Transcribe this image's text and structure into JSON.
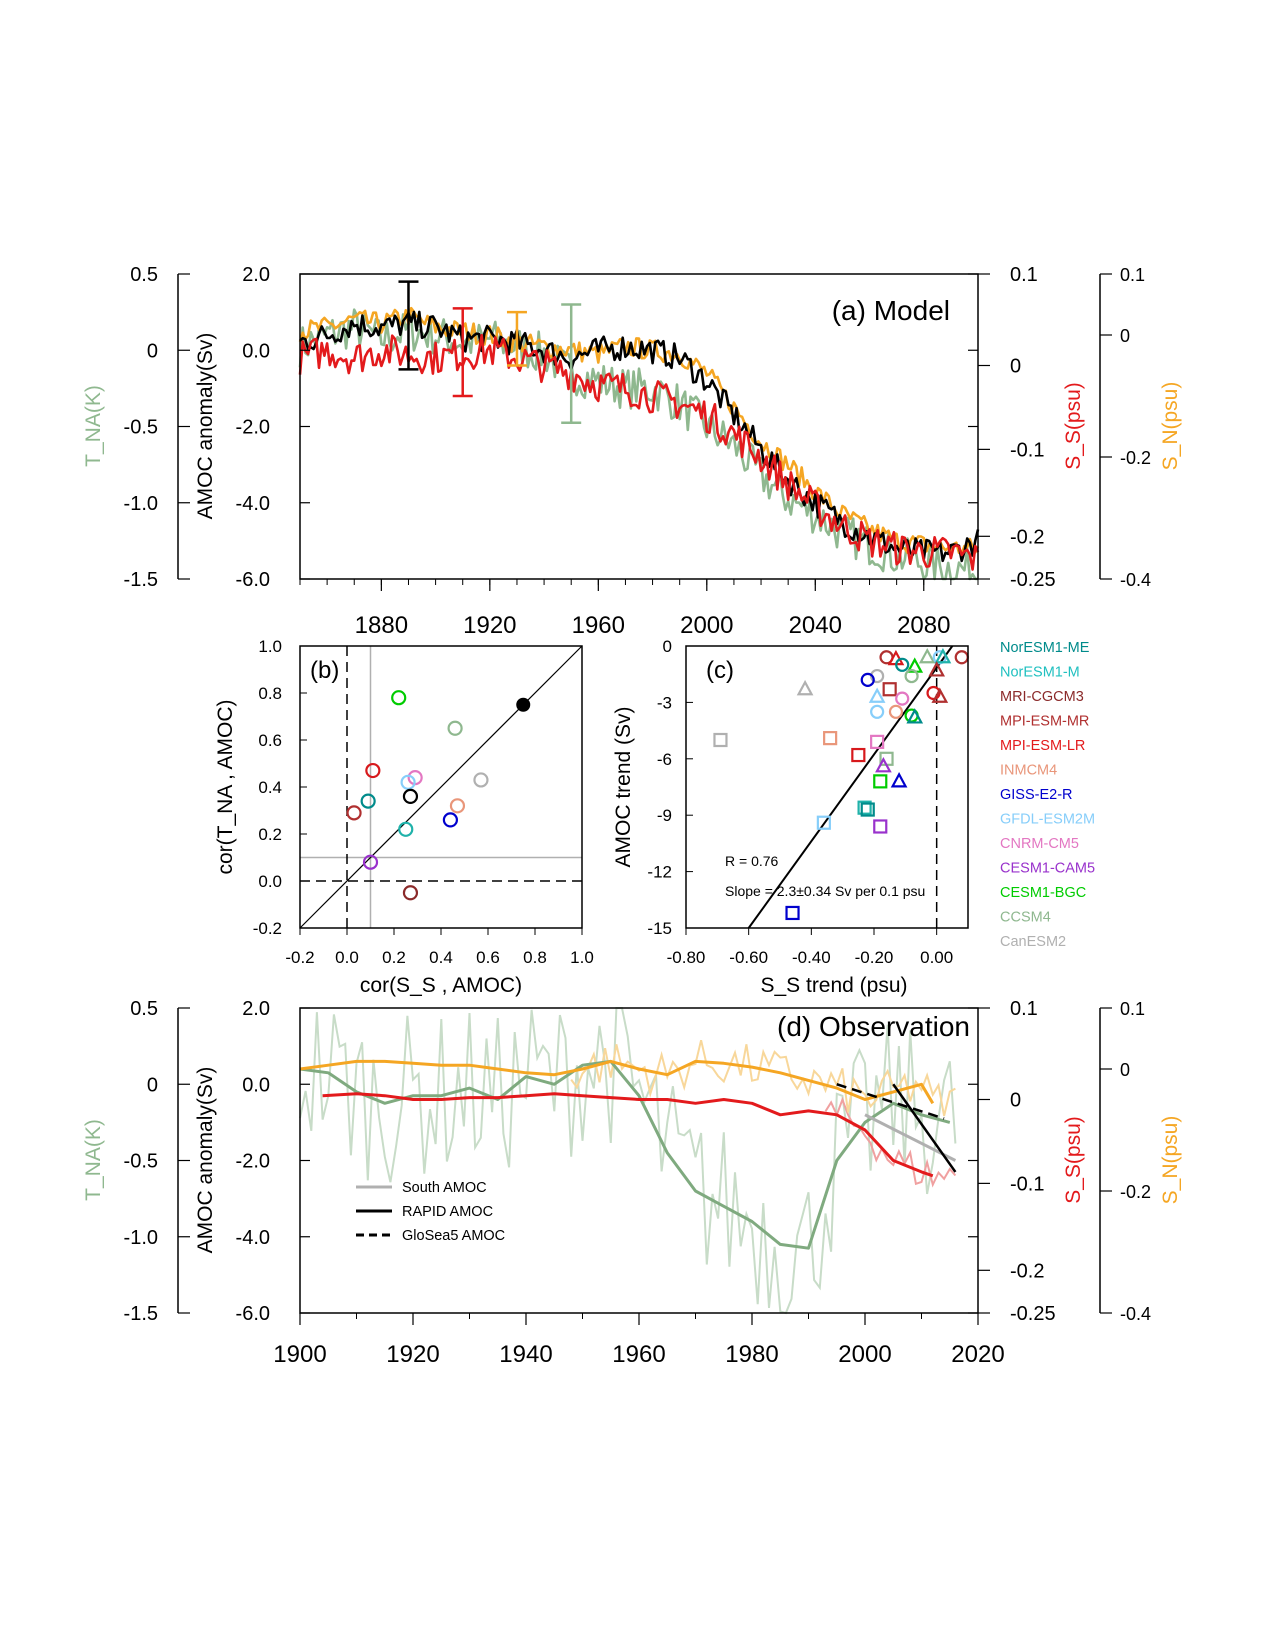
{
  "colors": {
    "black": "#000000",
    "red": "#e31a1c",
    "green": "#8fb88f",
    "orange": "#f5a623",
    "gray": "#b0b0b0"
  },
  "chart_data": [
    {
      "id": "a",
      "type": "line",
      "panel_label": "(a)  Model",
      "ylabel_left": "AMOC anomaly(Sv)",
      "ylabel_far_left": "T_NA(K)",
      "ylabel_right": "S_S(psu)",
      "ylabel_far_right": "S_N(psu)",
      "xlim": [
        1850,
        2100
      ],
      "xticks": [
        "1880",
        "1920",
        "1960",
        "2000",
        "2040",
        "2080"
      ],
      "ylim": [
        -6.0,
        2.0
      ],
      "yticks_left": [
        "2.0",
        "0.0",
        "-2.0",
        "-4.0",
        "-6.0"
      ],
      "yticks_far_left": [
        "0.5",
        "0",
        "-0.5",
        "-1.0",
        "-1.5"
      ],
      "yticks_right": [
        "0.1",
        "0",
        "-0.1",
        "-0.2",
        "-0.25"
      ],
      "yticks_far_right": [
        "0.1",
        "0",
        "-0.2",
        "-0.4"
      ],
      "series": [
        {
          "role": "AMOC",
          "color": "#000000",
          "x": [
            1850,
            1860,
            1870,
            1880,
            1890,
            1900,
            1910,
            1920,
            1930,
            1940,
            1950,
            1960,
            1970,
            1980,
            1990,
            2000,
            2010,
            2020,
            2030,
            2040,
            2050,
            2060,
            2070,
            2080,
            2090,
            2100
          ],
          "values": [
            0.2,
            0.4,
            0.7,
            0.6,
            0.7,
            0.6,
            0.3,
            0.3,
            0.2,
            0.0,
            -0.2,
            0.0,
            0.1,
            0.0,
            -0.2,
            -0.8,
            -1.7,
            -2.6,
            -3.4,
            -4.0,
            -4.5,
            -4.9,
            -5.2,
            -5.3,
            -5.3,
            -5.0
          ]
        },
        {
          "role": "S_S",
          "color": "#e31a1c",
          "x": [
            1850,
            1860,
            1870,
            1880,
            1890,
            1900,
            1910,
            1920,
            1930,
            1940,
            1950,
            1960,
            1970,
            1980,
            1990,
            2000,
            2010,
            2020,
            2030,
            2040,
            2050,
            2060,
            2070,
            2080,
            2090,
            2100
          ],
          "values": [
            -0.2,
            0.0,
            -0.2,
            0.0,
            -0.1,
            -0.2,
            -0.1,
            0.0,
            -0.2,
            -0.4,
            -0.6,
            -0.9,
            -1.0,
            -1.2,
            -1.4,
            -1.7,
            -2.2,
            -2.8,
            -3.5,
            -4.1,
            -4.6,
            -5.0,
            -5.2,
            -5.3,
            -5.3,
            -5.5
          ]
        },
        {
          "role": "T_NA",
          "color": "#8fb88f",
          "x": [
            1850,
            1860,
            1870,
            1880,
            1890,
            1900,
            1910,
            1920,
            1930,
            1940,
            1950,
            1960,
            1970,
            1980,
            1990,
            2000,
            2010,
            2020,
            2030,
            2040,
            2050,
            2060,
            2070,
            2080,
            2090,
            2100
          ],
          "values": [
            0.1,
            0.4,
            0.6,
            0.3,
            0.5,
            0.4,
            0.2,
            0.3,
            0.1,
            -0.1,
            -0.6,
            -0.8,
            -1.0,
            -1.0,
            -1.4,
            -2.0,
            -2.5,
            -3.3,
            -3.9,
            -4.3,
            -4.8,
            -5.1,
            -5.4,
            -5.6,
            -5.7,
            -5.8
          ]
        },
        {
          "role": "S_N",
          "color": "#f5a623",
          "x": [
            1850,
            1860,
            1870,
            1880,
            1890,
            1900,
            1910,
            1920,
            1930,
            1940,
            1950,
            1960,
            1970,
            1980,
            1990,
            2000,
            2010,
            2020,
            2030,
            2040,
            2050,
            2060,
            2070,
            2080,
            2090,
            2100
          ],
          "values": [
            0.5,
            0.6,
            0.8,
            0.7,
            0.9,
            0.6,
            0.5,
            0.4,
            0.2,
            0.1,
            0.0,
            -0.1,
            0.1,
            0.0,
            -0.1,
            -0.6,
            -1.5,
            -2.4,
            -3.0,
            -3.7,
            -4.3,
            -4.7,
            -5.0,
            -5.1,
            -5.2,
            -5.2
          ]
        }
      ],
      "error_bars": [
        {
          "color": "#000000",
          "x": 1890,
          "low": -0.5,
          "high": 1.8
        },
        {
          "color": "#e31a1c",
          "x": 1910,
          "low": -1.2,
          "high": 1.1
        },
        {
          "color": "#f5a623",
          "x": 1930,
          "low": -0.4,
          "high": 1.0
        },
        {
          "color": "#8fb88f",
          "x": 1950,
          "low": -1.9,
          "high": 1.2
        }
      ]
    },
    {
      "id": "b",
      "type": "scatter",
      "panel_label": "(b)",
      "xlabel": "cor(S_S , AMOC)",
      "ylabel": "cor(T_NA , AMOC)",
      "xlim": [
        -0.2,
        1.0
      ],
      "ylim": [
        -0.2,
        1.0
      ],
      "xticks": [
        "-0.2",
        "0.0",
        "0.2",
        "0.4",
        "0.6",
        "0.8",
        "1.0"
      ],
      "yticks": [
        "1.0",
        "0.8",
        "0.6",
        "0.4",
        "0.2",
        "0.0",
        "-0.2"
      ],
      "points": [
        {
          "x": 0.22,
          "y": 0.78,
          "color": "#00cc00"
        },
        {
          "x": 0.46,
          "y": 0.65,
          "color": "#8fb88f"
        },
        {
          "x": 0.57,
          "y": 0.43,
          "color": "#b0b0b0"
        },
        {
          "x": 0.11,
          "y": 0.47,
          "color": "#d7191c"
        },
        {
          "x": 0.29,
          "y": 0.44,
          "color": "#e377c2"
        },
        {
          "x": 0.26,
          "y": 0.42,
          "color": "#87cefa"
        },
        {
          "x": 0.27,
          "y": 0.36,
          "color": "#000000"
        },
        {
          "x": 0.09,
          "y": 0.34,
          "color": "#008b8b"
        },
        {
          "x": 0.47,
          "y": 0.32,
          "color": "#e9967a"
        },
        {
          "x": 0.03,
          "y": 0.29,
          "color": "#b03030"
        },
        {
          "x": 0.44,
          "y": 0.26,
          "color": "#0000cd"
        },
        {
          "x": 0.25,
          "y": 0.22,
          "color": "#20b2aa"
        },
        {
          "x": 0.1,
          "y": 0.08,
          "color": "#9932cc"
        },
        {
          "x": 0.27,
          "y": -0.05,
          "color": "#8b2a2a"
        }
      ],
      "filled_point": {
        "x": 0.75,
        "y": 0.75,
        "color": "#000000"
      }
    },
    {
      "id": "c",
      "type": "scatter",
      "panel_label": "(c)",
      "xlabel": "S_S trend (psu)",
      "ylabel": "AMOC trend (Sv)",
      "xlim": [
        -0.8,
        0.1
      ],
      "ylim": [
        -15,
        0
      ],
      "xticks": [
        "-0.80",
        "-0.60",
        "-0.40",
        "-0.20",
        "0.00"
      ],
      "yticks": [
        "0",
        "-3",
        "-6",
        "-9",
        "-12",
        "-15"
      ],
      "annotation_r": "R = 0.76",
      "annotation_slope": "Slope = 2.3±0.34 Sv per 0.1 psu",
      "fit_line": {
        "x": [
          -0.6,
          0.05
        ],
        "y": [
          -15,
          0
        ]
      },
      "points": [
        {
          "x": -0.16,
          "y": -0.6,
          "m": "o",
          "c": "#b03030"
        },
        {
          "x": -0.13,
          "y": -0.7,
          "m": "^",
          "c": "#d7191c"
        },
        {
          "x": -0.11,
          "y": -1.0,
          "m": "o",
          "c": "#008b8b"
        },
        {
          "x": -0.03,
          "y": -0.6,
          "m": "^",
          "c": "#8fb88f"
        },
        {
          "x": 0.01,
          "y": -0.6,
          "m": "o",
          "c": "#87cefa"
        },
        {
          "x": 0.02,
          "y": -0.6,
          "m": "^",
          "c": "#20b2aa"
        },
        {
          "x": 0.08,
          "y": -0.6,
          "m": "o",
          "c": "#b03030"
        },
        {
          "x": -0.07,
          "y": -1.1,
          "m": "^",
          "c": "#00cc00"
        },
        {
          "x": 0.0,
          "y": -1.3,
          "m": "^",
          "c": "#b03030"
        },
        {
          "x": -0.19,
          "y": -1.6,
          "m": "o",
          "c": "#b0b0b0"
        },
        {
          "x": -0.22,
          "y": -1.8,
          "m": "o",
          "c": "#0000cd"
        },
        {
          "x": -0.08,
          "y": -1.6,
          "m": "o",
          "c": "#8fb88f"
        },
        {
          "x": -0.42,
          "y": -2.3,
          "m": "^",
          "c": "#b0b0b0"
        },
        {
          "x": -0.15,
          "y": -2.3,
          "m": "s",
          "c": "#b03030"
        },
        {
          "x": -0.01,
          "y": -2.5,
          "m": "o",
          "c": "#d7191c"
        },
        {
          "x": 0.01,
          "y": -2.7,
          "m": "^",
          "c": "#b03030"
        },
        {
          "x": -0.19,
          "y": -2.7,
          "m": "^",
          "c": "#87cefa"
        },
        {
          "x": -0.11,
          "y": -2.8,
          "m": "o",
          "c": "#e377c2"
        },
        {
          "x": -0.19,
          "y": -3.5,
          "m": "o",
          "c": "#87cefa"
        },
        {
          "x": -0.13,
          "y": -3.5,
          "m": "o",
          "c": "#e9967a"
        },
        {
          "x": -0.08,
          "y": -3.7,
          "m": "o",
          "c": "#00cc00"
        },
        {
          "x": -0.07,
          "y": -3.8,
          "m": "^",
          "c": "#008b8b"
        },
        {
          "x": -0.69,
          "y": -5.0,
          "m": "s",
          "c": "#b0b0b0"
        },
        {
          "x": -0.34,
          "y": -4.9,
          "m": "s",
          "c": "#e9967a"
        },
        {
          "x": -0.19,
          "y": -5.1,
          "m": "s",
          "c": "#e377c2"
        },
        {
          "x": -0.25,
          "y": -5.8,
          "m": "s",
          "c": "#d7191c"
        },
        {
          "x": -0.16,
          "y": -6.0,
          "m": "s",
          "c": "#8fb88f"
        },
        {
          "x": -0.17,
          "y": -6.4,
          "m": "^",
          "c": "#9932cc"
        },
        {
          "x": -0.12,
          "y": -7.2,
          "m": "^",
          "c": "#0000cd"
        },
        {
          "x": -0.18,
          "y": -7.2,
          "m": "s",
          "c": "#00cc00"
        },
        {
          "x": -0.23,
          "y": -8.6,
          "m": "s",
          "c": "#20b2aa"
        },
        {
          "x": -0.22,
          "y": -8.7,
          "m": "s",
          "c": "#008b8b"
        },
        {
          "x": -0.36,
          "y": -9.4,
          "m": "s",
          "c": "#87cefa"
        },
        {
          "x": -0.18,
          "y": -9.6,
          "m": "s",
          "c": "#9932cc"
        },
        {
          "x": -0.46,
          "y": -14.2,
          "m": "s",
          "c": "#0000cd"
        }
      ]
    },
    {
      "id": "d",
      "type": "line",
      "panel_label": "(d)  Observation",
      "ylabel_left": "AMOC anomaly(Sv)",
      "ylabel_far_left": "T_NA(K)",
      "ylabel_right": "S_S(psu)",
      "ylabel_far_right": "S_N(psu)",
      "xlim": [
        1900,
        2020
      ],
      "xticks": [
        "1900",
        "1920",
        "1940",
        "1960",
        "1980",
        "2000",
        "2020"
      ],
      "ylim": [
        -6.0,
        2.0
      ],
      "yticks_left": [
        "2.0",
        "0.0",
        "-2.0",
        "-4.0",
        "-6.0"
      ],
      "yticks_far_left": [
        "0.5",
        "0",
        "-0.5",
        "-1.0",
        "-1.5"
      ],
      "yticks_right": [
        "0.1",
        "0",
        "-0.1",
        "-0.2",
        "-0.25"
      ],
      "yticks_far_right": [
        "0.1",
        "0",
        "-0.2",
        "-0.4"
      ],
      "legend": [
        "South AMOC",
        "RAPID AMOC",
        "GloSea5 AMOC"
      ],
      "series": [
        {
          "role": "S_N smooth",
          "color": "#f5a623",
          "x": [
            1900,
            1905,
            1910,
            1915,
            1920,
            1925,
            1930,
            1935,
            1940,
            1945,
            1950,
            1955,
            1960,
            1965,
            1970,
            1975,
            1980,
            1985,
            1990,
            1995,
            2000,
            2005,
            2010,
            2012
          ],
          "values": [
            0.4,
            0.5,
            0.6,
            0.6,
            0.55,
            0.5,
            0.5,
            0.4,
            0.3,
            0.25,
            0.4,
            0.6,
            0.4,
            0.25,
            0.6,
            0.55,
            0.45,
            0.3,
            0.1,
            -0.1,
            -0.4,
            -0.2,
            0.0,
            -0.5
          ]
        },
        {
          "role": "S_S smooth",
          "color": "#e31a1c",
          "x": [
            1904,
            1910,
            1915,
            1920,
            1925,
            1930,
            1935,
            1940,
            1945,
            1950,
            1955,
            1960,
            1965,
            1970,
            1975,
            1980,
            1985,
            1990,
            1995,
            2000,
            2005,
            2010,
            2012
          ],
          "values": [
            -0.3,
            -0.25,
            -0.3,
            -0.4,
            -0.4,
            -0.35,
            -0.35,
            -0.3,
            -0.25,
            -0.3,
            -0.35,
            -0.4,
            -0.4,
            -0.5,
            -0.4,
            -0.5,
            -0.8,
            -0.7,
            -0.8,
            -1.2,
            -2.0,
            -2.3,
            -2.4
          ]
        },
        {
          "role": "T_NA smooth",
          "color": "#7faa7f",
          "x": [
            1900,
            1905,
            1910,
            1915,
            1920,
            1925,
            1930,
            1935,
            1940,
            1945,
            1950,
            1955,
            1960,
            1965,
            1970,
            1975,
            1980,
            1985,
            1990,
            1995,
            2000,
            2005,
            2010,
            2015
          ],
          "values": [
            0.4,
            0.3,
            -0.2,
            -0.5,
            -0.3,
            -0.3,
            -0.1,
            -0.4,
            0.2,
            0.0,
            0.5,
            0.6,
            -0.3,
            -1.8,
            -2.8,
            -3.2,
            -3.6,
            -4.2,
            -4.3,
            -2.0,
            -1.0,
            -0.5,
            -0.8,
            -1.0
          ]
        },
        {
          "role": "South AMOC",
          "color": "#b0b0b0",
          "x": [
            2000,
            2016
          ],
          "values": [
            -0.8,
            -2.0
          ]
        },
        {
          "role": "RAPID AMOC",
          "color": "#000000",
          "x": [
            2005,
            2016
          ],
          "values": [
            0.0,
            -2.3
          ]
        },
        {
          "role": "GloSea5 AMOC",
          "color": "#000000",
          "x": [
            1995,
            2014
          ],
          "values": [
            0.0,
            -0.9
          ]
        }
      ]
    }
  ],
  "legend_models": [
    {
      "name": "NorESM1-ME",
      "color": "#008b8b"
    },
    {
      "name": "NorESM1-M",
      "color": "#20c0c0"
    },
    {
      "name": "MRI-CGCM3",
      "color": "#8b2a2a"
    },
    {
      "name": "MPI-ESM-MR",
      "color": "#b03030"
    },
    {
      "name": "MPI-ESM-LR",
      "color": "#e31a1c"
    },
    {
      "name": "INMCM4",
      "color": "#e9967a"
    },
    {
      "name": "GISS-E2-R",
      "color": "#0000cd"
    },
    {
      "name": "GFDL-ESM2M",
      "color": "#87cefa"
    },
    {
      "name": "CNRM-CM5",
      "color": "#e377c2"
    },
    {
      "name": "CESM1-CAM5",
      "color": "#9932cc"
    },
    {
      "name": "CESM1-BGC",
      "color": "#00cc00"
    },
    {
      "name": "CCSM4",
      "color": "#8fb88f"
    },
    {
      "name": "CanESM2",
      "color": "#b0b0b0"
    }
  ]
}
